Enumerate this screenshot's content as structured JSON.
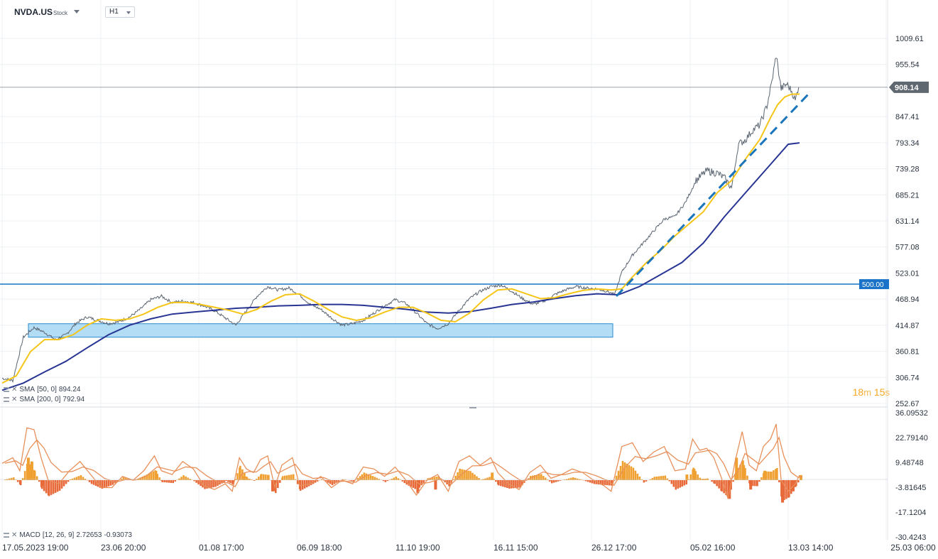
{
  "header": {
    "symbol": "NVDA.US",
    "symbol_type": "Stock",
    "timeframe": "H1"
  },
  "indicators": {
    "sma50": {
      "label": "SMA",
      "params": "[50, 0]",
      "value": "894.24",
      "color": "#f5c518"
    },
    "sma200": {
      "label": "SMA",
      "params": "[200, 0]",
      "value": "792.94",
      "color": "#283593"
    },
    "macd": {
      "label": "MACD",
      "params": "[12, 26, 9]",
      "value1": "2.72653",
      "value2": "-0.93073"
    }
  },
  "timer": {
    "minutes": "18",
    "m_unit": "m",
    "seconds": "15",
    "s_unit": "s"
  },
  "current_price_label": "908.14",
  "level_label": "500.00",
  "colors": {
    "price_line": "#5a6470",
    "level_line": "#1a73c8",
    "level_badge": "#1a73c8",
    "current_badge": "#5f6770",
    "support_zone_fill": "#b3dcf5",
    "support_zone_stroke": "#2b8ccf",
    "trendline": "#1b75bb",
    "macd_hist_pos": "#f0a030",
    "macd_hist_neg": "#e86a3a",
    "macd_lines": "#e8905a"
  },
  "chart_data": [
    {
      "type": "line",
      "price_axis_ticks": [
        "1009.61",
        "955.54",
        "847.41",
        "793.34",
        "739.28",
        "685.21",
        "631.14",
        "577.08",
        "523.01",
        "468.94",
        "414.87",
        "360.81",
        "306.74",
        "252.67"
      ],
      "ylim": [
        252.67,
        1009.61
      ],
      "time_axis_ticks": [
        "17.05.2023 19:00",
        "23.06 20:00",
        "01.08 17:00",
        "06.09 18:00",
        "11.10 19:00",
        "16.11 15:00",
        "26.12 17:00",
        "05.02 16:00",
        "13.03 14:00",
        "25.03 06:00"
      ],
      "price_path": [
        [
          0,
          305
        ],
        [
          15,
          300
        ],
        [
          30,
          390
        ],
        [
          45,
          410
        ],
        [
          60,
          400
        ],
        [
          75,
          385
        ],
        [
          90,
          395
        ],
        [
          105,
          420
        ],
        [
          120,
          432
        ],
        [
          135,
          425
        ],
        [
          150,
          418
        ],
        [
          165,
          422
        ],
        [
          180,
          432
        ],
        [
          195,
          448
        ],
        [
          210,
          468
        ],
        [
          225,
          475
        ],
        [
          240,
          462
        ],
        [
          255,
          465
        ],
        [
          270,
          462
        ],
        [
          285,
          455
        ],
        [
          300,
          445
        ],
        [
          315,
          430
        ],
        [
          330,
          415
        ],
        [
          345,
          445
        ],
        [
          360,
          475
        ],
        [
          375,
          495
        ],
        [
          390,
          488
        ],
        [
          405,
          492
        ],
        [
          420,
          478
        ],
        [
          435,
          458
        ],
        [
          450,
          448
        ],
        [
          465,
          430
        ],
        [
          480,
          415
        ],
        [
          495,
          418
        ],
        [
          510,
          425
        ],
        [
          525,
          440
        ],
        [
          540,
          455
        ],
        [
          555,
          468
        ],
        [
          570,
          460
        ],
        [
          585,
          440
        ],
        [
          600,
          418
        ],
        [
          615,
          408
        ],
        [
          630,
          418
        ],
        [
          645,
          445
        ],
        [
          660,
          470
        ],
        [
          675,
          485
        ],
        [
          690,
          495
        ],
        [
          705,
          498
        ],
        [
          720,
          485
        ],
        [
          735,
          470
        ],
        [
          750,
          458
        ],
        [
          765,
          465
        ],
        [
          780,
          478
        ],
        [
          795,
          488
        ],
        [
          810,
          495
        ],
        [
          825,
          492
        ],
        [
          840,
          490
        ],
        [
          855,
          485
        ],
        [
          865,
          478
        ],
        [
          875,
          525
        ],
        [
          890,
          560
        ],
        [
          905,
          585
        ],
        [
          920,
          610
        ],
        [
          935,
          635
        ],
        [
          950,
          640
        ],
        [
          965,
          670
        ],
        [
          980,
          715
        ],
        [
          995,
          735
        ],
        [
          1010,
          730
        ],
        [
          1020,
          720
        ],
        [
          1030,
          700
        ],
        [
          1040,
          790
        ],
        [
          1050,
          800
        ],
        [
          1060,
          820
        ],
        [
          1070,
          830
        ],
        [
          1080,
          870
        ],
        [
          1087,
          920
        ],
        [
          1093,
          975
        ],
        [
          1100,
          905
        ],
        [
          1108,
          915
        ],
        [
          1115,
          900
        ],
        [
          1120,
          880
        ],
        [
          1126,
          920
        ]
      ],
      "sma50_path": [
        [
          0,
          295
        ],
        [
          20,
          310
        ],
        [
          40,
          360
        ],
        [
          60,
          385
        ],
        [
          80,
          385
        ],
        [
          100,
          395
        ],
        [
          120,
          415
        ],
        [
          140,
          428
        ],
        [
          160,
          425
        ],
        [
          180,
          428
        ],
        [
          200,
          438
        ],
        [
          220,
          452
        ],
        [
          240,
          462
        ],
        [
          260,
          462
        ],
        [
          280,
          458
        ],
        [
          300,
          452
        ],
        [
          320,
          446
        ],
        [
          340,
          438
        ],
        [
          360,
          448
        ],
        [
          380,
          465
        ],
        [
          400,
          478
        ],
        [
          420,
          480
        ],
        [
          440,
          465
        ],
        [
          460,
          448
        ],
        [
          480,
          432
        ],
        [
          500,
          425
        ],
        [
          520,
          430
        ],
        [
          540,
          442
        ],
        [
          560,
          452
        ],
        [
          580,
          452
        ],
        [
          600,
          440
        ],
        [
          620,
          425
        ],
        [
          640,
          422
        ],
        [
          660,
          440
        ],
        [
          680,
          468
        ],
        [
          700,
          488
        ],
        [
          720,
          490
        ],
        [
          740,
          480
        ],
        [
          760,
          470
        ],
        [
          780,
          472
        ],
        [
          800,
          480
        ],
        [
          820,
          487
        ],
        [
          840,
          490
        ],
        [
          860,
          488
        ],
        [
          875,
          490
        ],
        [
          890,
          515
        ],
        [
          910,
          545
        ],
        [
          930,
          570
        ],
        [
          950,
          600
        ],
        [
          970,
          625
        ],
        [
          990,
          650
        ],
        [
          1010,
          690
        ],
        [
          1030,
          715
        ],
        [
          1050,
          760
        ],
        [
          1070,
          800
        ],
        [
          1085,
          845
        ],
        [
          1095,
          872
        ],
        [
          1105,
          888
        ],
        [
          1115,
          894
        ],
        [
          1126,
          894
        ]
      ],
      "sma200_path": [
        [
          0,
          280
        ],
        [
          30,
          295
        ],
        [
          60,
          318
        ],
        [
          90,
          340
        ],
        [
          120,
          368
        ],
        [
          150,
          395
        ],
        [
          180,
          415
        ],
        [
          210,
          428
        ],
        [
          240,
          438
        ],
        [
          270,
          442
        ],
        [
          300,
          446
        ],
        [
          330,
          450
        ],
        [
          360,
          452
        ],
        [
          390,
          455
        ],
        [
          420,
          456
        ],
        [
          450,
          458
        ],
        [
          480,
          458
        ],
        [
          510,
          456
        ],
        [
          540,
          452
        ],
        [
          570,
          448
        ],
        [
          600,
          442
        ],
        [
          630,
          440
        ],
        [
          660,
          443
        ],
        [
          690,
          450
        ],
        [
          720,
          458
        ],
        [
          750,
          463
        ],
        [
          780,
          470
        ],
        [
          810,
          476
        ],
        [
          840,
          480
        ],
        [
          870,
          478
        ],
        [
          900,
          495
        ],
        [
          930,
          520
        ],
        [
          960,
          545
        ],
        [
          990,
          585
        ],
        [
          1020,
          640
        ],
        [
          1050,
          690
        ],
        [
          1080,
          740
        ],
        [
          1110,
          790
        ],
        [
          1126,
          793
        ]
      ],
      "support_zone": [
        390,
        418
      ],
      "horizontal_level": 500.0,
      "current_price": 908.14
    },
    {
      "type": "bar",
      "title": "MACD [12, 26, 9]",
      "y_axis_ticks": [
        "36.09532",
        "22.79140",
        "9.48748",
        "-3.81645",
        "-17.1204",
        "-30.4243"
      ],
      "ylim": [
        -30.4243,
        36.09532
      ],
      "macd_line": [
        [
          0,
          9
        ],
        [
          15,
          12
        ],
        [
          25,
          5
        ],
        [
          35,
          28
        ],
        [
          45,
          27
        ],
        [
          55,
          12
        ],
        [
          65,
          0
        ],
        [
          80,
          -2
        ],
        [
          95,
          5
        ],
        [
          110,
          10
        ],
        [
          125,
          3
        ],
        [
          140,
          -4
        ],
        [
          155,
          -4
        ],
        [
          170,
          2
        ],
        [
          185,
          0
        ],
        [
          200,
          5
        ],
        [
          215,
          13
        ],
        [
          225,
          5
        ],
        [
          240,
          3
        ],
        [
          255,
          10
        ],
        [
          270,
          6
        ],
        [
          285,
          -3
        ],
        [
          300,
          -5
        ],
        [
          315,
          -2
        ],
        [
          325,
          -6
        ],
        [
          335,
          12
        ],
        [
          345,
          6
        ],
        [
          355,
          4
        ],
        [
          365,
          11
        ],
        [
          375,
          13
        ],
        [
          385,
          -4
        ],
        [
          395,
          8
        ],
        [
          410,
          12
        ],
        [
          420,
          -3
        ],
        [
          435,
          -2
        ],
        [
          450,
          2
        ],
        [
          465,
          -4
        ],
        [
          480,
          0
        ],
        [
          495,
          -2
        ],
        [
          510,
          7
        ],
        [
          525,
          6
        ],
        [
          540,
          2
        ],
        [
          555,
          7
        ],
        [
          570,
          0
        ],
        [
          585,
          -8
        ],
        [
          600,
          0
        ],
        [
          615,
          3
        ],
        [
          630,
          -6
        ],
        [
          645,
          10
        ],
        [
          660,
          13
        ],
        [
          675,
          8
        ],
        [
          690,
          12
        ],
        [
          700,
          4
        ],
        [
          715,
          -2
        ],
        [
          730,
          -5
        ],
        [
          745,
          4
        ],
        [
          760,
          8
        ],
        [
          775,
          1
        ],
        [
          790,
          3
        ],
        [
          805,
          6
        ],
        [
          820,
          4
        ],
        [
          835,
          0
        ],
        [
          850,
          -3
        ],
        [
          860,
          -6
        ],
        [
          875,
          18
        ],
        [
          890,
          20
        ],
        [
          905,
          10
        ],
        [
          920,
          15
        ],
        [
          935,
          18
        ],
        [
          950,
          5
        ],
        [
          965,
          6
        ],
        [
          975,
          22
        ],
        [
          985,
          16
        ],
        [
          995,
          17
        ],
        [
          1005,
          12
        ],
        [
          1015,
          2
        ],
        [
          1025,
          -10
        ],
        [
          1035,
          10
        ],
        [
          1045,
          26
        ],
        [
          1055,
          8
        ],
        [
          1065,
          5
        ],
        [
          1075,
          18
        ],
        [
          1085,
          22
        ],
        [
          1093,
          30
        ],
        [
          1100,
          0
        ],
        [
          1110,
          -6
        ],
        [
          1120,
          -2
        ],
        [
          1126,
          2.7
        ]
      ],
      "hist": [
        [
          35,
          12
        ],
        [
          40,
          10
        ],
        [
          55,
          -3
        ],
        [
          215,
          5
        ],
        [
          340,
          2
        ],
        [
          380,
          -6
        ],
        [
          585,
          -7
        ],
        [
          610,
          -5
        ],
        [
          690,
          4
        ],
        [
          875,
          5
        ],
        [
          965,
          3
        ],
        [
          975,
          6
        ],
        [
          1025,
          -10
        ],
        [
          1035,
          12
        ],
        [
          1045,
          8
        ],
        [
          1055,
          -5
        ],
        [
          1075,
          5
        ],
        [
          1100,
          -12
        ],
        [
          1115,
          -6
        ],
        [
          1126,
          2.7
        ]
      ]
    }
  ]
}
